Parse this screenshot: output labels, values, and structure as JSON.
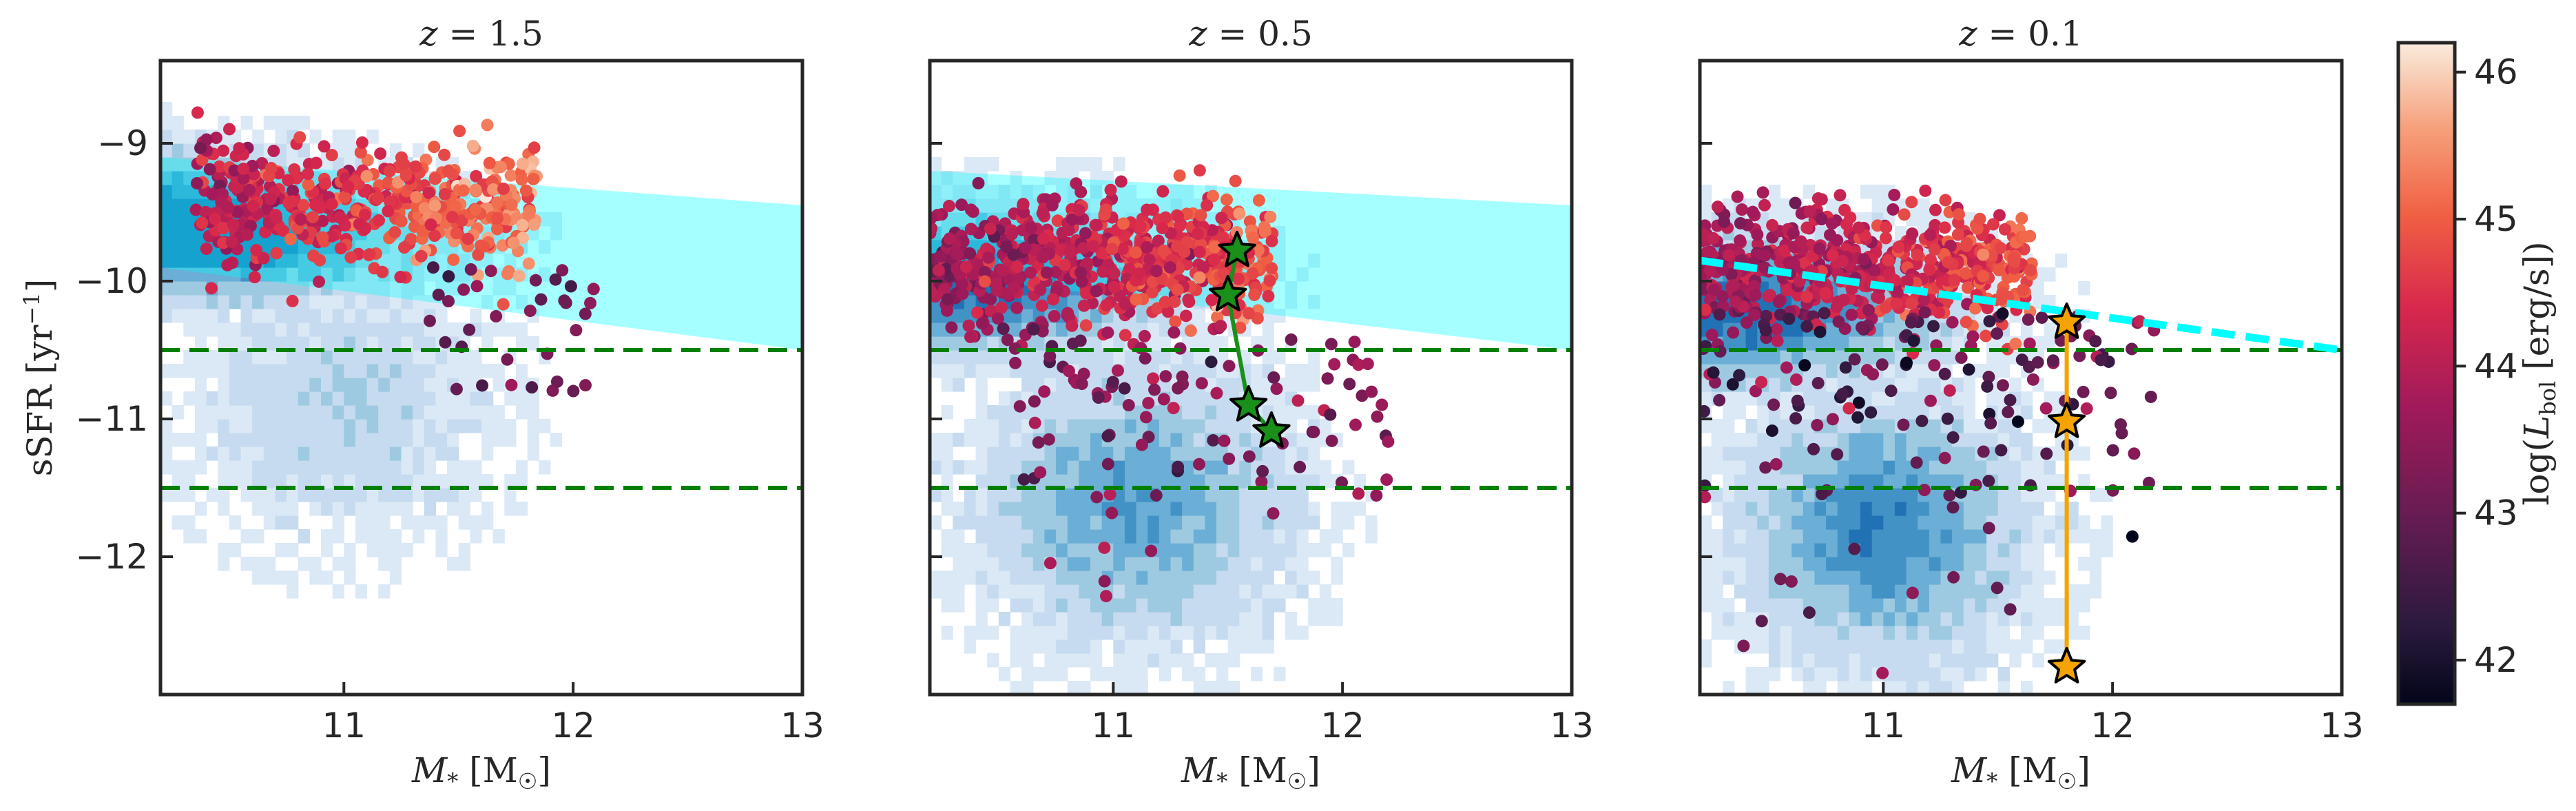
{
  "chart_data": [
    {
      "type": "scatter",
      "panel": "left",
      "title": "z = 1.5",
      "title_parts": {
        "var": "z",
        "eq": " = ",
        "val": "1.5"
      },
      "xlabel": "M* [M☉]",
      "xlabel_parts": {
        "main": "M",
        "sub": "*",
        "rest": " [M",
        "sun": "☉",
        "close": "]"
      },
      "ylabel": "sSFR [yr⁻¹]",
      "ylabel_parts": {
        "main": "sSFR [yr",
        "sup": "−1",
        "close": "]"
      },
      "xlim": [
        10.2,
        13.0
      ],
      "ylim": [
        -13.0,
        -8.4
      ],
      "xticks": [
        11,
        12,
        13
      ],
      "xtick_labels": [
        "11",
        "12",
        "13"
      ],
      "yticks": [
        -9,
        -10,
        -11,
        -12
      ],
      "ytick_labels": [
        "−9",
        "−10",
        "−11",
        "−12"
      ],
      "hlines": [
        -10.5,
        -11.5
      ],
      "hline_color": "#008000",
      "band": {
        "x": [
          10.2,
          13.0
        ],
        "upper": [
          -9.1,
          -9.45
        ],
        "lower": [
          -9.9,
          -10.5
        ],
        "color": "#00ffff"
      },
      "background_hist": "blue 2D histogram of galaxy population",
      "scatter_colorby": "log(L_bol)",
      "stars": []
    },
    {
      "type": "scatter",
      "panel": "middle",
      "title": "z = 0.5",
      "title_parts": {
        "var": "z",
        "eq": " = ",
        "val": "0.5"
      },
      "xlabel": "M* [M☉]",
      "xlabel_parts": {
        "main": "M",
        "sub": "*",
        "rest": " [M",
        "sun": "☉",
        "close": "]"
      },
      "xlim": [
        10.2,
        13.0
      ],
      "ylim": [
        -13.0,
        -8.4
      ],
      "xticks": [
        11,
        12,
        13
      ],
      "xtick_labels": [
        "11",
        "12",
        "13"
      ],
      "yticks": [
        -9,
        -10,
        -11,
        -12
      ],
      "hlines": [
        -10.5,
        -11.5
      ],
      "hline_color": "#008000",
      "band": {
        "x": [
          10.2,
          13.0
        ],
        "upper": [
          -9.2,
          -9.45
        ],
        "lower": [
          -9.95,
          -10.5
        ],
        "color": "#00ffff"
      },
      "background_hist": "blue 2D histogram of galaxy population",
      "scatter_colorby": "log(L_bol)",
      "track_color": "#1a8f1a",
      "stars": [
        {
          "x": 11.54,
          "y": -9.78
        },
        {
          "x": 11.5,
          "y": -10.1
        },
        {
          "x": 11.59,
          "y": -10.9
        },
        {
          "x": 11.69,
          "y": -11.09
        }
      ]
    },
    {
      "type": "scatter",
      "panel": "right",
      "title": "z = 0.1",
      "title_parts": {
        "var": "z",
        "eq": " = ",
        "val": "0.1"
      },
      "xlabel": "M* [M☉]",
      "xlabel_parts": {
        "main": "M",
        "sub": "*",
        "rest": " [M",
        "sun": "☉",
        "close": "]"
      },
      "xlim": [
        10.2,
        13.0
      ],
      "ylim": [
        -13.0,
        -8.4
      ],
      "xticks": [
        11,
        12,
        13
      ],
      "xtick_labels": [
        "11",
        "12",
        "13"
      ],
      "yticks": [
        -9,
        -10,
        -11,
        -12
      ],
      "hlines": [
        -10.5,
        -11.5
      ],
      "hline_color": "#008000",
      "dashed_line": {
        "x": [
          10.2,
          13.0
        ],
        "y": [
          -9.85,
          -10.5
        ],
        "color": "#00ffff"
      },
      "background_hist": "blue 2D histogram of galaxy population",
      "scatter_colorby": "log(L_bol)",
      "track_color": "#f5a300",
      "stars": [
        {
          "x": 11.8,
          "y": -10.3
        },
        {
          "x": 11.8,
          "y": -11.02
        },
        {
          "x": 11.8,
          "y": -12.8
        }
      ]
    }
  ],
  "colorbar": {
    "label": "log(L_bol [erg/s])",
    "label_parts": {
      "pre": "log(",
      "L": "L",
      "sub": "bol",
      "unit": " [erg/s])"
    },
    "range": [
      41.7,
      46.2
    ],
    "ticks": [
      42,
      43,
      44,
      45,
      46
    ],
    "tick_labels": [
      "42",
      "43",
      "44",
      "45",
      "46"
    ]
  }
}
